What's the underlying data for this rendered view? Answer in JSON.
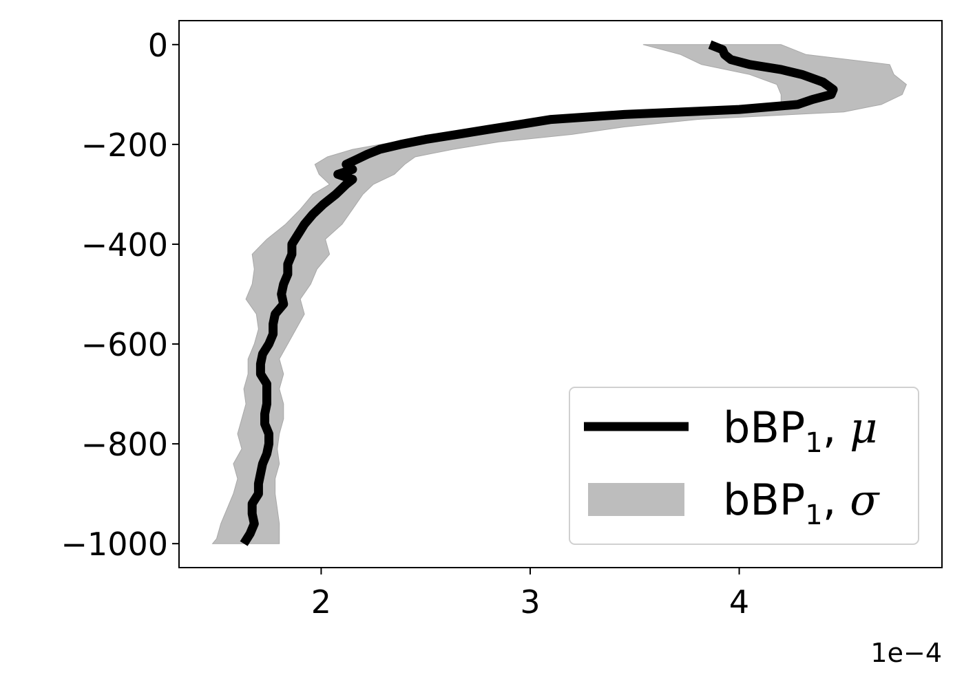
{
  "chart_data": {
    "type": "area",
    "title": "",
    "xlabel": "",
    "ylabel": "",
    "x_offset_label": "1e−4",
    "x_scale": 0.0001,
    "xlim": [
      1.32,
      4.97
    ],
    "ylim": [
      -1048,
      48
    ],
    "xticks": [
      2,
      3,
      4
    ],
    "xtick_labels": [
      "2",
      "3",
      "4"
    ],
    "yticks": [
      0,
      -200,
      -400,
      -600,
      -800,
      -1000
    ],
    "ytick_labels": [
      "0",
      "−200",
      "−400",
      "−600",
      "−800",
      "−1000"
    ],
    "grid": false,
    "legend_position": "lower right",
    "legend": {
      "mean": {
        "base": "bBP",
        "sub": "1",
        "sep": ", ",
        "greek": "μ"
      },
      "std": {
        "base": "bBP",
        "sub": "1",
        "sep": ", ",
        "greek": "σ"
      }
    },
    "colors": {
      "mean": "#000000",
      "std": "#bdbdbd",
      "axis": "#000000"
    },
    "series": [
      {
        "kind": "line",
        "depth": [
          0,
          -10,
          -20,
          -30,
          -40,
          -50,
          -60,
          -75,
          -90,
          -100,
          -110,
          -120,
          -130,
          -140,
          -150,
          -160,
          -170,
          -180,
          -190,
          -200,
          -210,
          -220,
          -230,
          -240,
          -250,
          -260,
          -270,
          -280,
          -300,
          -320,
          -340,
          -360,
          -380,
          -400,
          -420,
          -440,
          -460,
          -480,
          -500,
          -520,
          -540,
          -560,
          -580,
          -600,
          -620,
          -640,
          -660,
          -680,
          -700,
          -720,
          -740,
          -760,
          -780,
          -800,
          -820,
          -840,
          -860,
          -880,
          -900,
          -920,
          -940,
          -960,
          -980,
          -1000
        ],
        "values": [
          3.86,
          3.92,
          3.93,
          3.96,
          4.05,
          4.2,
          4.3,
          4.4,
          4.45,
          4.44,
          4.35,
          4.28,
          4.0,
          3.45,
          3.1,
          2.95,
          2.8,
          2.65,
          2.5,
          2.38,
          2.28,
          2.22,
          2.17,
          2.12,
          2.15,
          2.08,
          2.15,
          2.12,
          2.07,
          2.01,
          1.96,
          1.92,
          1.89,
          1.86,
          1.86,
          1.84,
          1.84,
          1.82,
          1.81,
          1.82,
          1.78,
          1.77,
          1.77,
          1.75,
          1.72,
          1.71,
          1.71,
          1.74,
          1.74,
          1.74,
          1.73,
          1.73,
          1.75,
          1.75,
          1.74,
          1.72,
          1.71,
          1.7,
          1.7,
          1.67,
          1.67,
          1.68,
          1.66,
          1.63
        ]
      },
      {
        "kind": "band",
        "depth": [
          0,
          -20,
          -40,
          -60,
          -80,
          -100,
          -120,
          -135,
          -150,
          -165,
          -180,
          -195,
          -210,
          -225,
          -240,
          -260,
          -280,
          -300,
          -330,
          -360,
          -390,
          -420,
          -450,
          -480,
          -510,
          -540,
          -570,
          -600,
          -630,
          -660,
          -690,
          -720,
          -750,
          -780,
          -810,
          -840,
          -870,
          -900,
          -930,
          -960,
          -990,
          -1000
        ],
        "lower": [
          3.54,
          3.72,
          3.82,
          4.05,
          4.18,
          4.2,
          4.2,
          3.5,
          3.2,
          2.8,
          2.6,
          2.35,
          2.15,
          2.03,
          1.97,
          1.99,
          2.04,
          1.96,
          1.9,
          1.83,
          1.74,
          1.67,
          1.68,
          1.67,
          1.64,
          1.69,
          1.7,
          1.68,
          1.65,
          1.65,
          1.63,
          1.64,
          1.62,
          1.6,
          1.62,
          1.58,
          1.6,
          1.58,
          1.55,
          1.52,
          1.5,
          1.48
        ],
        "upper": [
          4.2,
          4.32,
          4.72,
          4.74,
          4.8,
          4.78,
          4.68,
          4.5,
          3.8,
          3.45,
          3.2,
          2.85,
          2.63,
          2.45,
          2.4,
          2.35,
          2.25,
          2.2,
          2.15,
          2.1,
          2.02,
          2.04,
          1.98,
          1.95,
          1.9,
          1.92,
          1.88,
          1.84,
          1.8,
          1.82,
          1.8,
          1.82,
          1.82,
          1.8,
          1.79,
          1.8,
          1.78,
          1.78,
          1.79,
          1.8,
          1.8,
          1.8
        ]
      }
    ]
  }
}
